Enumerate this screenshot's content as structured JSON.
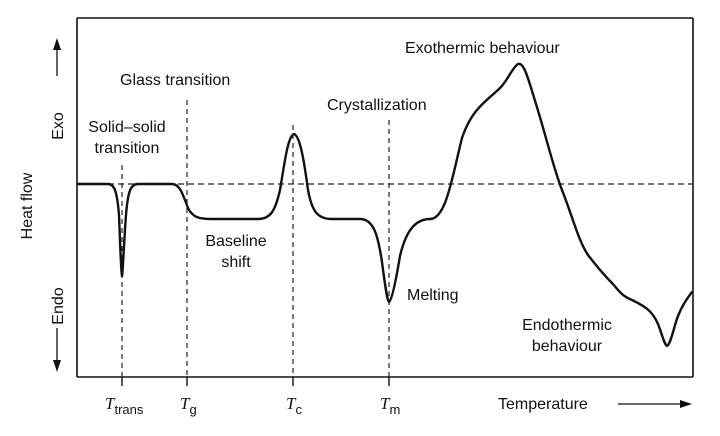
{
  "figure": {
    "y_axis_label": "Heat flow",
    "y_top_label": "Exo",
    "y_bottom_label": "Endo",
    "x_axis_label": "Temperature",
    "ticks": [
      {
        "main": "T",
        "sub": "trans"
      },
      {
        "main": "T",
        "sub": "g"
      },
      {
        "main": "T",
        "sub": "c"
      },
      {
        "main": "T",
        "sub": "m"
      }
    ],
    "annotations": {
      "solid_solid_line1": "Solid–solid",
      "solid_solid_line2": "transition",
      "glass_transition": "Glass transition",
      "baseline_line1": "Baseline",
      "baseline_line2": "shift",
      "crystallization": "Crystallization",
      "melting": "Melting",
      "exothermic": "Exothermic behaviour",
      "endothermic_line1": "Endothermic",
      "endothermic_line2": "behaviour"
    }
  }
}
